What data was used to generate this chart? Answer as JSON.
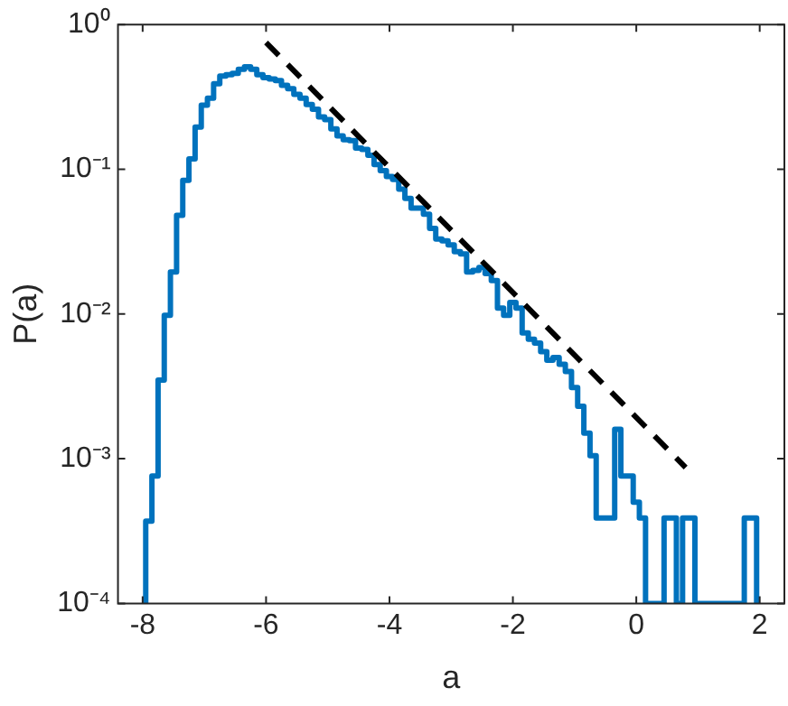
{
  "chart_data": {
    "type": "histogram",
    "xlabel": "a",
    "ylabel": "P(a)",
    "log": "y",
    "grid": false,
    "legend": false,
    "bins": [
      -7.95,
      -7.85,
      -7.75,
      -7.65,
      -7.55,
      -7.45,
      -7.35,
      -7.25,
      -7.15,
      -7.05,
      -6.95,
      -6.85,
      -6.75,
      -6.65,
      -6.55,
      -6.45,
      -6.35,
      -6.25,
      -6.15,
      -6.05,
      -5.95,
      -5.85,
      -5.75,
      -5.65,
      -5.55,
      -5.45,
      -5.35,
      -5.25,
      -5.15,
      -5.05,
      -4.95,
      -4.85,
      -4.75,
      -4.65,
      -4.55,
      -4.45,
      -4.35,
      -4.25,
      -4.15,
      -4.05,
      -3.95,
      -3.85,
      -3.75,
      -3.65,
      -3.55,
      -3.45,
      -3.35,
      -3.25,
      -3.15,
      -3.05,
      -2.95,
      -2.85,
      -2.75,
      -2.65,
      -2.55,
      -2.45,
      -2.35,
      -2.25,
      -2.15,
      -2.05,
      -1.95,
      -1.85,
      -1.75,
      -1.65,
      -1.55,
      -1.45,
      -1.35,
      -1.25,
      -1.15,
      -1.05,
      -0.95,
      -0.85,
      -0.75,
      -0.65,
      -0.55,
      -0.45,
      -0.35,
      -0.25,
      -0.15,
      -0.05,
      0.05,
      0.15,
      0.25,
      0.35,
      0.45,
      0.55,
      0.65,
      0.75,
      0.85,
      0.95,
      1.05,
      1.15,
      1.25,
      1.35,
      1.45,
      1.55,
      1.65,
      1.75,
      1.85,
      1.95
    ],
    "values": [
      0.00037,
      0.00076,
      0.0035,
      0.0098,
      0.0195,
      0.048,
      0.084,
      0.118,
      0.196,
      0.277,
      0.31,
      0.39,
      0.44,
      0.45,
      0.46,
      0.49,
      0.51,
      0.49,
      0.45,
      0.43,
      0.42,
      0.41,
      0.38,
      0.36,
      0.33,
      0.31,
      0.28,
      0.26,
      0.23,
      0.22,
      0.19,
      0.17,
      0.16,
      0.158,
      0.14,
      0.137,
      0.125,
      0.108,
      0.098,
      0.089,
      0.085,
      0.073,
      0.063,
      0.054,
      0.054,
      0.049,
      0.039,
      0.033,
      0.032,
      0.03,
      0.027,
      0.026,
      0.0195,
      0.02,
      0.021,
      0.019,
      0.017,
      0.011,
      0.0098,
      0.012,
      0.011,
      0.0074,
      0.0067,
      0.0063,
      0.0055,
      0.0048,
      0.005,
      0.0045,
      0.004,
      0.0031,
      0.0023,
      0.0015,
      0.00105,
      0.00039,
      0.00039,
      0.00039,
      0.0016,
      0.00076,
      0.00076,
      0.0005,
      0.00039,
      null,
      null,
      null,
      0.00039,
      0.00039,
      null,
      0.00039,
      0.00039,
      null,
      null,
      null,
      null,
      null,
      null,
      null,
      null,
      0.00039,
      0.00039
    ],
    "color": "#0072bd",
    "series": [
      {
        "type": "line",
        "color": "#000000",
        "line_style": "dashed",
        "marker": "none",
        "x": [
          -6,
          0.8
        ],
        "values": [
          0.75,
          0.00087
        ]
      }
    ],
    "xlim": [
      -8.4,
      2.4
    ],
    "xticks": [
      -8,
      -6,
      -4,
      -2,
      0,
      2
    ],
    "ylim": [
      0.0001,
      1
    ],
    "yticks": [
      {
        "value": 0.0001,
        "label": "10⁻⁴"
      },
      {
        "value": 0.001,
        "label": "10⁻³"
      },
      {
        "value": 0.01,
        "label": "10⁻²"
      },
      {
        "value": 0.1,
        "label": "10⁻¹"
      },
      {
        "value": 1,
        "label": "10⁰"
      }
    ]
  }
}
